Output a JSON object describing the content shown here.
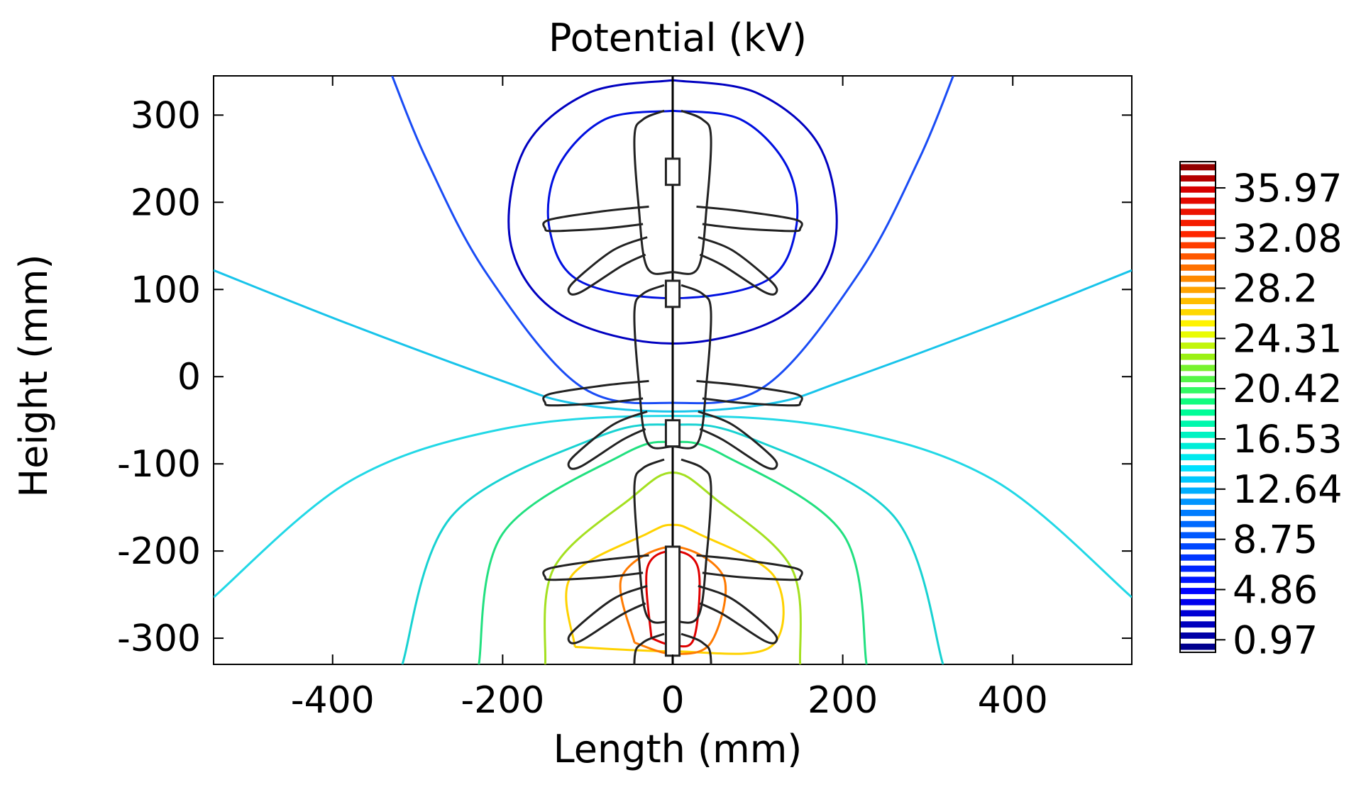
{
  "chart_data": {
    "type": "contour",
    "title": "Potential (kV)",
    "xlabel": "Length (mm)",
    "ylabel": "Height (mm)",
    "xlim": [
      -540,
      540
    ],
    "ylim": [
      -330,
      345
    ],
    "xticks": [
      -400,
      -200,
      0,
      200,
      400
    ],
    "yticks": [
      300,
      200,
      100,
      0,
      -100,
      -200,
      -300
    ],
    "grid": false,
    "colorbar": {
      "location": "right",
      "range": [
        0,
        38
      ],
      "tick_values": [
        35.97,
        32.08,
        28.2,
        24.31,
        20.42,
        16.53,
        12.64,
        8.75,
        4.86,
        0.97
      ],
      "tick_labels": [
        "35.97",
        "32.08",
        "28.2",
        "24.31",
        "20.42",
        "16.53",
        "12.64",
        "8.75",
        "4.86",
        "0.97"
      ],
      "colormap": "rainbow"
    },
    "contours": [
      {
        "level": 2,
        "color": "#0000c0",
        "points": [
          [
            0,
            340
          ],
          [
            -100,
            325
          ],
          [
            -175,
            260
          ],
          [
            -190,
            150
          ],
          [
            -130,
            70
          ],
          [
            0,
            38
          ],
          [
            130,
            70
          ],
          [
            190,
            150
          ],
          [
            175,
            260
          ],
          [
            100,
            325
          ],
          [
            0,
            340
          ]
        ]
      },
      {
        "level": 4,
        "color": "#0010e0",
        "points": [
          [
            0,
            305
          ],
          [
            -80,
            295
          ],
          [
            -135,
            240
          ],
          [
            -145,
            170
          ],
          [
            -110,
            110
          ],
          [
            0,
            90
          ],
          [
            110,
            110
          ],
          [
            145,
            170
          ],
          [
            135,
            240
          ],
          [
            80,
            295
          ],
          [
            0,
            305
          ]
        ]
      },
      {
        "level": 7,
        "color": "#1a4cf5",
        "points": [
          [
            -330,
            345
          ],
          [
            -290,
            250
          ],
          [
            -220,
            120
          ],
          [
            -110,
            -10
          ],
          [
            0,
            -30
          ],
          [
            110,
            -10
          ],
          [
            220,
            120
          ],
          [
            290,
            250
          ],
          [
            330,
            345
          ]
        ]
      },
      {
        "level": 11,
        "color": "#18c4ea",
        "points": [
          [
            -540,
            122
          ],
          [
            -380,
            60
          ],
          [
            -200,
            -5
          ],
          [
            -120,
            -30
          ],
          [
            0,
            -40
          ],
          [
            120,
            -30
          ],
          [
            200,
            -5
          ],
          [
            380,
            60
          ],
          [
            540,
            122
          ]
        ]
      },
      {
        "level": 12,
        "color": "#22d8e6",
        "points": [
          [
            -540,
            -253
          ],
          [
            -380,
            -120
          ],
          [
            -200,
            -60
          ],
          [
            0,
            -45
          ],
          [
            200,
            -60
          ],
          [
            380,
            -120
          ],
          [
            540,
            -253
          ]
        ]
      },
      {
        "level": 15,
        "color": "#18d2d2",
        "points": [
          [
            -318,
            -330
          ],
          [
            -260,
            -160
          ],
          [
            -90,
            -70
          ],
          [
            0,
            -55
          ],
          [
            90,
            -70
          ],
          [
            260,
            -160
          ],
          [
            318,
            -330
          ]
        ]
      },
      {
        "level": 19,
        "color": "#22e080",
        "points": [
          [
            -228,
            -330
          ],
          [
            -200,
            -180
          ],
          [
            -60,
            -90
          ],
          [
            0,
            -75
          ],
          [
            60,
            -90
          ],
          [
            200,
            -180
          ],
          [
            228,
            -330
          ]
        ]
      },
      {
        "level": 22,
        "color": "#a4e020",
        "points": [
          [
            -150,
            -330
          ],
          [
            -140,
            -220
          ],
          [
            -50,
            -140
          ],
          [
            0,
            -110
          ],
          [
            50,
            -140
          ],
          [
            140,
            -220
          ],
          [
            150,
            -330
          ]
        ]
      },
      {
        "level": 25,
        "color": "#ffd200",
        "points": [
          [
            -115,
            -310
          ],
          [
            -120,
            -230
          ],
          [
            -30,
            -180
          ],
          [
            0,
            -170
          ],
          [
            30,
            -180
          ],
          [
            120,
            -230
          ],
          [
            115,
            -310
          ],
          [
            0,
            -315
          ],
          [
            -115,
            -310
          ]
        ]
      },
      {
        "level": 30,
        "color": "#ff7a00",
        "points": [
          [
            -45,
            -305
          ],
          [
            -60,
            -230
          ],
          [
            0,
            -195
          ],
          [
            60,
            -230
          ],
          [
            45,
            -305
          ],
          [
            0,
            -318
          ],
          [
            -45,
            -305
          ]
        ]
      },
      {
        "level": 34,
        "color": "#e00000",
        "points": [
          [
            -25,
            -300
          ],
          [
            -30,
            -220
          ],
          [
            0,
            -200
          ],
          [
            30,
            -220
          ],
          [
            25,
            -300
          ],
          [
            0,
            -308
          ],
          [
            -25,
            -300
          ]
        ]
      }
    ]
  }
}
